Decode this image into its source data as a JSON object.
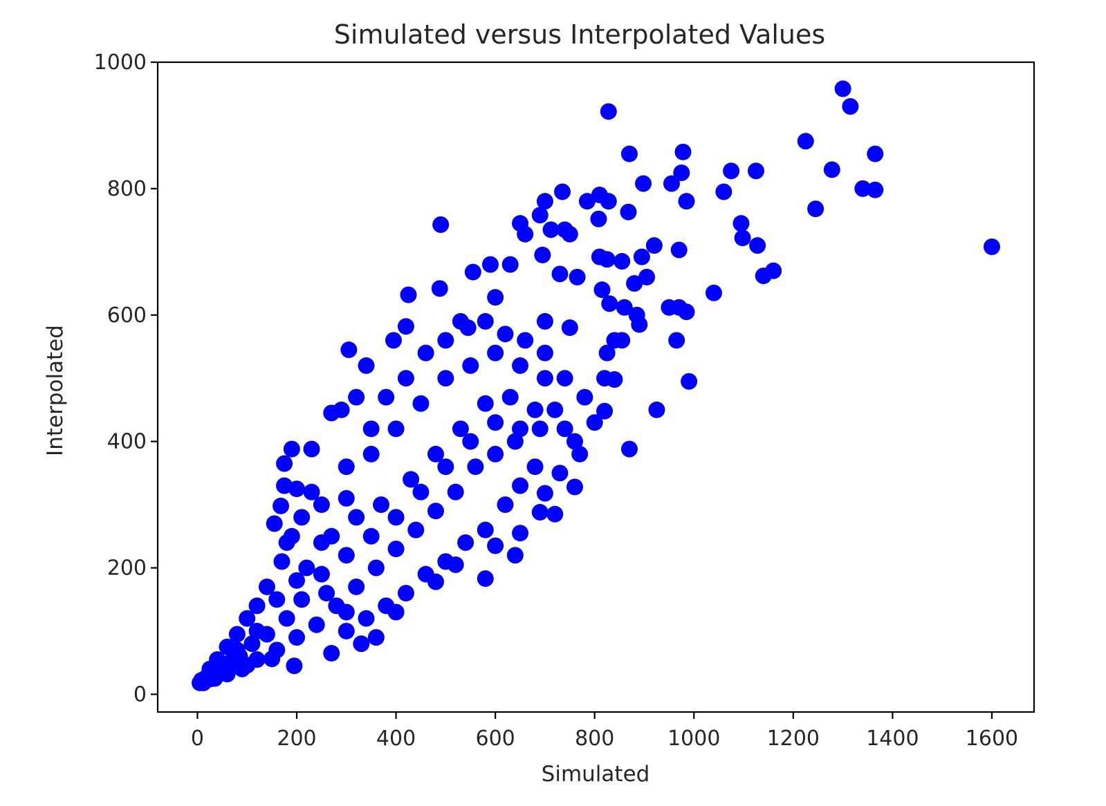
{
  "chart_data": {
    "type": "scatter",
    "title": "Simulated versus Interpolated Values",
    "xlabel": "Simulated",
    "ylabel": "Interpolated",
    "xlim": [
      -80,
      1685
    ],
    "ylim": [
      -28,
      1000
    ],
    "xticks": [
      0,
      200,
      400,
      600,
      800,
      1000,
      1200,
      1400,
      1600
    ],
    "yticks": [
      0,
      200,
      400,
      600,
      800,
      1000
    ],
    "xtick_labels": [
      "0",
      "200",
      "400",
      "600",
      "800",
      "1000",
      "1200",
      "1400",
      "1600"
    ],
    "ytick_labels": [
      "0",
      "200",
      "400",
      "600",
      "800",
      "1000"
    ],
    "grid": false,
    "marker_color": "#0000ff",
    "series": [
      {
        "points": [
          [
            1300,
            958
          ],
          [
            1315,
            930
          ],
          [
            828,
            922
          ],
          [
            1225,
            875
          ],
          [
            870,
            855
          ],
          [
            978,
            858
          ],
          [
            1365,
            855
          ],
          [
            1075,
            828
          ],
          [
            1125,
            828
          ],
          [
            1278,
            830
          ],
          [
            975,
            825
          ],
          [
            955,
            808
          ],
          [
            898,
            808
          ],
          [
            1060,
            795
          ],
          [
            1340,
            800
          ],
          [
            1365,
            798
          ],
          [
            735,
            795
          ],
          [
            700,
            780
          ],
          [
            810,
            790
          ],
          [
            785,
            780
          ],
          [
            828,
            780
          ],
          [
            985,
            780
          ],
          [
            1245,
            768
          ],
          [
            868,
            763
          ],
          [
            690,
            758
          ],
          [
            808,
            752
          ],
          [
            1095,
            745
          ],
          [
            490,
            743
          ],
          [
            650,
            745
          ],
          [
            660,
            728
          ],
          [
            712,
            735
          ],
          [
            740,
            735
          ],
          [
            750,
            728
          ],
          [
            1098,
            722
          ],
          [
            1128,
            710
          ],
          [
            1600,
            708
          ],
          [
            920,
            710
          ],
          [
            970,
            703
          ],
          [
            895,
            692
          ],
          [
            810,
            692
          ],
          [
            825,
            688
          ],
          [
            855,
            685
          ],
          [
            630,
            680
          ],
          [
            695,
            695
          ],
          [
            730,
            665
          ],
          [
            590,
            680
          ],
          [
            555,
            668
          ],
          [
            1160,
            670
          ],
          [
            1140,
            662
          ],
          [
            880,
            650
          ],
          [
            905,
            660
          ],
          [
            765,
            660
          ],
          [
            1040,
            635
          ],
          [
            425,
            632
          ],
          [
            488,
            642
          ],
          [
            600,
            628
          ],
          [
            815,
            640
          ],
          [
            830,
            618
          ],
          [
            860,
            612
          ],
          [
            950,
            612
          ],
          [
            970,
            612
          ],
          [
            985,
            605
          ],
          [
            885,
            600
          ],
          [
            890,
            585
          ],
          [
            420,
            582
          ],
          [
            545,
            580
          ],
          [
            700,
            590
          ],
          [
            750,
            580
          ],
          [
            965,
            560
          ],
          [
            840,
            560
          ],
          [
            855,
            560
          ],
          [
            395,
            560
          ],
          [
            305,
            545
          ],
          [
            825,
            540
          ],
          [
            990,
            495
          ],
          [
            820,
            500
          ],
          [
            840,
            498
          ],
          [
            925,
            450
          ],
          [
            820,
            448
          ],
          [
            870,
            388
          ],
          [
            760,
            328
          ],
          [
            700,
            318
          ],
          [
            650,
            330
          ],
          [
            690,
            288
          ],
          [
            720,
            285
          ],
          [
            650,
            255
          ],
          [
            580,
            183
          ],
          [
            190,
            388
          ],
          [
            175,
            365
          ],
          [
            175,
            330
          ],
          [
            200,
            325
          ],
          [
            230,
            388
          ],
          [
            155,
            270
          ],
          [
            180,
            240
          ],
          [
            168,
            298
          ],
          [
            520,
            205
          ],
          [
            600,
            235
          ],
          [
            640,
            220
          ],
          [
            480,
            178
          ],
          [
            400,
            130
          ],
          [
            330,
            80
          ],
          [
            195,
            45
          ],
          [
            270,
            65
          ],
          [
            360,
            90
          ],
          [
            300,
            100
          ],
          [
            150,
            56
          ],
          [
            100,
            46
          ],
          [
            60,
            38
          ],
          [
            30,
            30
          ],
          [
            15,
            25
          ],
          [
            10,
            20
          ],
          [
            5,
            18
          ],
          [
            20,
            28
          ],
          [
            40,
            45
          ],
          [
            80,
            70
          ],
          [
            120,
            100
          ],
          [
            160,
            150
          ],
          [
            200,
            180
          ],
          [
            250,
            240
          ],
          [
            300,
            310
          ],
          [
            350,
            380
          ],
          [
            400,
            420
          ],
          [
            450,
            460
          ],
          [
            500,
            500
          ],
          [
            550,
            520
          ],
          [
            600,
            540
          ],
          [
            650,
            520
          ],
          [
            700,
            500
          ],
          [
            720,
            450
          ],
          [
            740,
            420
          ],
          [
            760,
            400
          ],
          [
            690,
            420
          ],
          [
            640,
            400
          ],
          [
            600,
            380
          ],
          [
            560,
            360
          ],
          [
            520,
            320
          ],
          [
            480,
            290
          ],
          [
            440,
            260
          ],
          [
            400,
            230
          ],
          [
            360,
            200
          ],
          [
            320,
            170
          ],
          [
            280,
            140
          ],
          [
            240,
            110
          ],
          [
            200,
            90
          ],
          [
            160,
            70
          ],
          [
            120,
            55
          ],
          [
            90,
            40
          ],
          [
            60,
            32
          ],
          [
            35,
            25
          ],
          [
            250,
            300
          ],
          [
            300,
            360
          ],
          [
            350,
            420
          ],
          [
            380,
            470
          ],
          [
            420,
            500
          ],
          [
            460,
            540
          ],
          [
            500,
            560
          ],
          [
            530,
            590
          ],
          [
            580,
            590
          ],
          [
            620,
            570
          ],
          [
            660,
            560
          ],
          [
            700,
            540
          ],
          [
            740,
            500
          ],
          [
            780,
            470
          ],
          [
            800,
            430
          ],
          [
            770,
            380
          ],
          [
            730,
            350
          ],
          [
            680,
            360
          ],
          [
            620,
            300
          ],
          [
            580,
            260
          ],
          [
            540,
            240
          ],
          [
            500,
            210
          ],
          [
            460,
            190
          ],
          [
            420,
            160
          ],
          [
            380,
            140
          ],
          [
            340,
            120
          ],
          [
            300,
            130
          ],
          [
            260,
            160
          ],
          [
            220,
            200
          ],
          [
            270,
            250
          ],
          [
            320,
            280
          ],
          [
            370,
            300
          ],
          [
            430,
            340
          ],
          [
            480,
            380
          ],
          [
            530,
            420
          ],
          [
            580,
            460
          ],
          [
            630,
            470
          ],
          [
            680,
            450
          ],
          [
            650,
            420
          ],
          [
            600,
            430
          ],
          [
            550,
            400
          ],
          [
            500,
            360
          ],
          [
            450,
            320
          ],
          [
            400,
            280
          ],
          [
            350,
            250
          ],
          [
            300,
            220
          ],
          [
            250,
            190
          ],
          [
            210,
            150
          ],
          [
            180,
            120
          ],
          [
            140,
            95
          ],
          [
            110,
            80
          ],
          [
            85,
            60
          ],
          [
            65,
            50
          ],
          [
            45,
            38
          ],
          [
            25,
            24
          ],
          [
            12,
            18
          ],
          [
            270,
            445
          ],
          [
            320,
            470
          ],
          [
            340,
            520
          ],
          [
            290,
            450
          ],
          [
            230,
            320
          ],
          [
            210,
            280
          ],
          [
            190,
            250
          ],
          [
            170,
            210
          ],
          [
            140,
            170
          ],
          [
            120,
            140
          ],
          [
            100,
            120
          ],
          [
            80,
            95
          ],
          [
            60,
            75
          ],
          [
            40,
            55
          ],
          [
            25,
            40
          ],
          [
            8,
            22
          ]
        ]
      }
    ]
  }
}
